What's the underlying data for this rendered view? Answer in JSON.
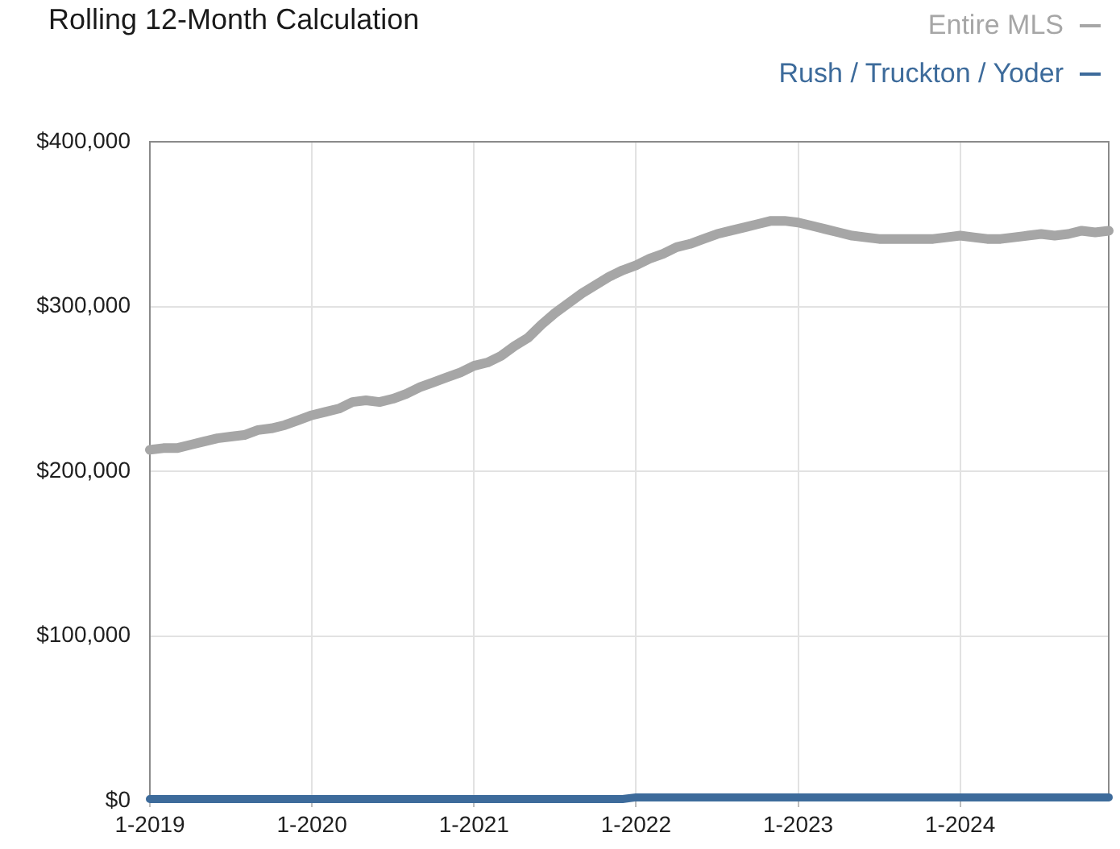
{
  "chart_data": {
    "type": "line",
    "title": "Rolling 12-Month Calculation",
    "categories": [
      "1-2019",
      null,
      null,
      null,
      null,
      null,
      null,
      null,
      null,
      null,
      null,
      null,
      "1-2020",
      null,
      null,
      null,
      null,
      null,
      null,
      null,
      null,
      null,
      null,
      null,
      "1-2021",
      null,
      null,
      null,
      null,
      null,
      null,
      null,
      null,
      null,
      null,
      null,
      "1-2022",
      null,
      null,
      null,
      null,
      null,
      null,
      null,
      null,
      null,
      null,
      null,
      "1-2023",
      null,
      null,
      null,
      null,
      null,
      null,
      null,
      null,
      null,
      null,
      null,
      "1-2024",
      null,
      null,
      null,
      null,
      null,
      null,
      null,
      null,
      null,
      null,
      null
    ],
    "series": [
      {
        "name": "Entire MLS",
        "color": "#a6a6a6",
        "values": [
          213000,
          214000,
          214000,
          216000,
          218000,
          220000,
          221000,
          222000,
          225000,
          226000,
          228000,
          231000,
          234000,
          236000,
          238000,
          242000,
          243000,
          242000,
          244000,
          247000,
          251000,
          254000,
          257000,
          260000,
          264000,
          266000,
          270000,
          276000,
          281000,
          289000,
          296000,
          302000,
          308000,
          313000,
          318000,
          322000,
          325000,
          329000,
          332000,
          336000,
          338000,
          341000,
          344000,
          346000,
          348000,
          350000,
          352000,
          352000,
          351000,
          349000,
          347000,
          345000,
          343000,
          342000,
          341000,
          341000,
          341000,
          341000,
          341000,
          342000,
          343000,
          342000,
          341000,
          341000,
          342000,
          343000,
          344000,
          343000,
          344000,
          346000,
          345000,
          346000
        ]
      },
      {
        "name": "Rush / Truckton / Yoder",
        "color": "#3d6b9b",
        "values": [
          1000,
          1000,
          1000,
          1000,
          1000,
          1000,
          1000,
          1000,
          1000,
          1000,
          1000,
          1000,
          1000,
          1000,
          1000,
          1000,
          1000,
          1000,
          1000,
          1000,
          1000,
          1000,
          1000,
          1000,
          1000,
          1000,
          1000,
          1000,
          1000,
          1000,
          1000,
          1000,
          1000,
          1000,
          1000,
          1000,
          2000,
          2000,
          2000,
          2000,
          2000,
          2000,
          2000,
          2000,
          2000,
          2000,
          2000,
          2000,
          2000,
          2000,
          2000,
          2000,
          2000,
          2000,
          2000,
          2000,
          2000,
          2000,
          2000,
          2000,
          2000,
          2000,
          2000,
          2000,
          2000,
          2000,
          2000,
          2000,
          2000,
          2000,
          2000,
          2000
        ]
      }
    ],
    "ylim": [
      0,
      400000
    ],
    "yticks": [
      {
        "value": 0,
        "label": "$0"
      },
      {
        "value": 100000,
        "label": "$100,000"
      },
      {
        "value": 200000,
        "label": "$200,000"
      },
      {
        "value": 300000,
        "label": "$300,000"
      },
      {
        "value": 400000,
        "label": "$400,000"
      }
    ],
    "grid": true,
    "legend": "top right"
  }
}
